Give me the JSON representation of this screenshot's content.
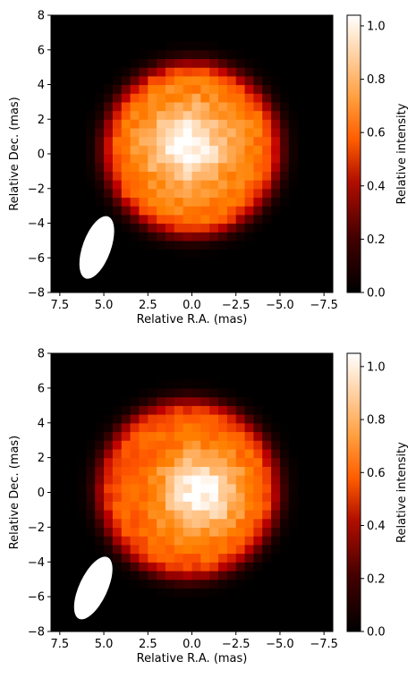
{
  "chart_data": [
    {
      "type": "heatmap",
      "xlabel": "Relative R.A. (mas)",
      "ylabel": "Relative Dec. (mas)",
      "colorbar_label": "Relative intensity",
      "xlim": [
        8,
        -8
      ],
      "ylim": [
        -8,
        8
      ],
      "x_ticks": [
        "7.5",
        "5.0",
        "2.5",
        "0.0",
        "−2.5",
        "−5.0",
        "−7.5"
      ],
      "y_ticks": [
        "−8",
        "−6",
        "−4",
        "−2",
        "0",
        "2",
        "4",
        "6",
        "8"
      ],
      "colorbar_range": [
        0,
        1.04
      ],
      "colorbar_ticks": [
        "0.0",
        "0.2",
        "0.4",
        "0.6",
        "0.8",
        "1.0"
      ],
      "colormap": "gist_heat",
      "disk": {
        "center_ra": 0.0,
        "center_dec": 0.3,
        "radius_mas": 5.0
      },
      "peak": {
        "ra": 0.2,
        "dec": 0.5,
        "value": 1.0
      },
      "limb_intensity": 0.72,
      "beam": {
        "center_ra": 5.4,
        "center_dec": -5.4,
        "major_mas": 3.8,
        "minor_mas": 1.6,
        "position_angle_deg": 20
      }
    },
    {
      "type": "heatmap",
      "xlabel": "Relative R.A. (mas)",
      "ylabel": "Relative Dec. (mas)",
      "colorbar_label": "Relative intensity",
      "xlim": [
        8,
        -8
      ],
      "ylim": [
        -8,
        8
      ],
      "x_ticks": [
        "7.5",
        "5.0",
        "2.5",
        "0.0",
        "−2.5",
        "−5.0",
        "−7.5"
      ],
      "y_ticks": [
        "−8",
        "−6",
        "−4",
        "−2",
        "0",
        "2",
        "4",
        "6",
        "8"
      ],
      "colorbar_range": [
        0,
        1.05
      ],
      "colorbar_ticks": [
        "0.0",
        "0.2",
        "0.4",
        "0.6",
        "0.8",
        "1.0"
      ],
      "colormap": "gist_heat",
      "disk": {
        "center_ra": 0.2,
        "center_dec": 0.2,
        "radius_mas": 5.1
      },
      "peak": {
        "ra": -0.5,
        "dec": 0.0,
        "value": 1.0
      },
      "limb_intensity": 0.68,
      "beam": {
        "center_ra": 5.6,
        "center_dec": -5.5,
        "major_mas": 3.9,
        "minor_mas": 1.6,
        "position_angle_deg": 25
      }
    }
  ]
}
